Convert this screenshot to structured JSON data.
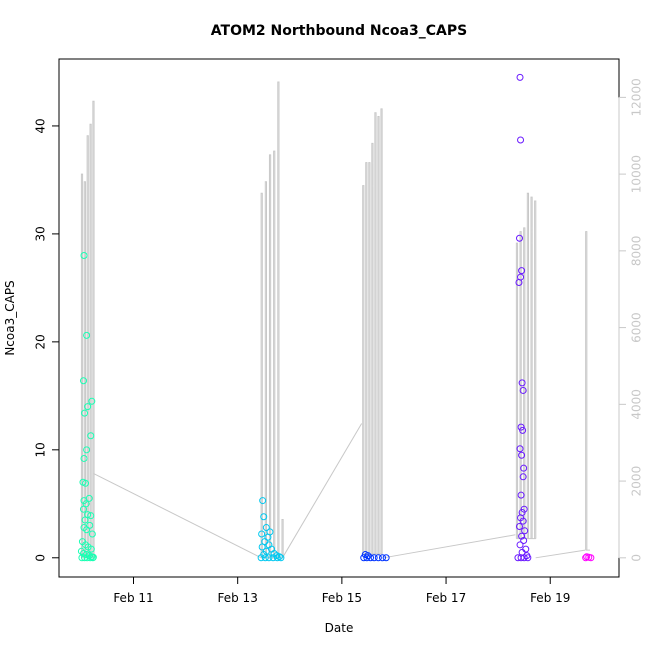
{
  "chart_data": {
    "type": "scatter",
    "title": "ATOM2 Northbound Ncoa3_CAPS",
    "xlabel": "Date",
    "ylabel": "Ncoa3_CAPS",
    "x_ticks": [
      "Feb 11",
      "Feb 13",
      "Feb 15",
      "Feb 17",
      "Feb 19"
    ],
    "x_tick_days": [
      11,
      13,
      15,
      17,
      19
    ],
    "xlim_days": [
      9.57,
      20.32
    ],
    "ylim": [
      -1.78,
      46.2
    ],
    "y_ticks": [
      0,
      10,
      20,
      30,
      40
    ],
    "y2_ticks": [
      0,
      2000,
      4000,
      6000,
      8000,
      10000,
      12000
    ],
    "y2lim": [
      -500,
      13000
    ],
    "grid": false,
    "colors": {
      "series_points": [
        "#1affb3",
        "#00c8f0",
        "#0033ff",
        "#6a1aff",
        "#ff00ff"
      ],
      "secondary_line": "#c8c8c8"
    },
    "series": [
      {
        "color": "#1affb3",
        "points": [
          [
            10.05,
            28.0
          ],
          [
            10.1,
            20.6
          ],
          [
            10.04,
            16.4
          ],
          [
            10.2,
            14.5
          ],
          [
            10.12,
            14.0
          ],
          [
            10.06,
            13.4
          ],
          [
            10.18,
            11.3
          ],
          [
            10.1,
            10.0
          ],
          [
            10.05,
            9.2
          ],
          [
            10.03,
            7.0
          ],
          [
            10.08,
            6.9
          ],
          [
            10.15,
            5.5
          ],
          [
            10.05,
            5.3
          ],
          [
            10.09,
            5.0
          ],
          [
            10.04,
            4.5
          ],
          [
            10.12,
            4.0
          ],
          [
            10.18,
            3.9
          ],
          [
            10.07,
            3.5
          ],
          [
            10.16,
            3.0
          ],
          [
            10.05,
            2.8
          ],
          [
            10.1,
            2.6
          ],
          [
            10.21,
            2.2
          ],
          [
            10.02,
            1.5
          ],
          [
            10.08,
            1.2
          ],
          [
            10.13,
            1.0
          ],
          [
            10.19,
            0.8
          ],
          [
            10.0,
            0.6
          ],
          [
            10.04,
            0.4
          ],
          [
            10.1,
            0.3
          ],
          [
            10.15,
            0.2
          ],
          [
            10.2,
            0.1
          ],
          [
            10.23,
            0.05
          ],
          [
            10.01,
            0.0
          ],
          [
            10.06,
            0.0
          ],
          [
            10.11,
            0.0
          ],
          [
            10.17,
            0.0
          ],
          [
            10.22,
            0.0
          ]
        ]
      },
      {
        "color": "#00c8f0",
        "points": [
          [
            13.48,
            5.3
          ],
          [
            13.5,
            3.8
          ],
          [
            13.55,
            2.8
          ],
          [
            13.62,
            2.4
          ],
          [
            13.46,
            2.2
          ],
          [
            13.58,
            1.9
          ],
          [
            13.52,
            1.5
          ],
          [
            13.6,
            1.2
          ],
          [
            13.47,
            1.0
          ],
          [
            13.65,
            0.8
          ],
          [
            13.55,
            0.6
          ],
          [
            13.7,
            0.4
          ],
          [
            13.5,
            0.3
          ],
          [
            13.75,
            0.2
          ],
          [
            13.8,
            0.1
          ],
          [
            13.45,
            0.0
          ],
          [
            13.53,
            0.0
          ],
          [
            13.6,
            0.0
          ],
          [
            13.68,
            0.0
          ],
          [
            13.76,
            0.0
          ],
          [
            13.83,
            0.0
          ]
        ]
      },
      {
        "color": "#0033ff",
        "points": [
          [
            15.45,
            0.3
          ],
          [
            15.5,
            0.2
          ],
          [
            15.42,
            0.0
          ],
          [
            15.48,
            0.0
          ],
          [
            15.55,
            0.0
          ],
          [
            15.62,
            0.0
          ],
          [
            15.7,
            0.0
          ],
          [
            15.78,
            0.0
          ],
          [
            15.85,
            0.0
          ]
        ]
      },
      {
        "color": "#6a1aff",
        "points": [
          [
            18.42,
            44.5
          ],
          [
            18.43,
            38.7
          ],
          [
            18.41,
            29.6
          ],
          [
            18.45,
            26.6
          ],
          [
            18.43,
            26.0
          ],
          [
            18.4,
            25.5
          ],
          [
            18.46,
            16.2
          ],
          [
            18.48,
            15.5
          ],
          [
            18.44,
            12.1
          ],
          [
            18.47,
            11.8
          ],
          [
            18.42,
            10.1
          ],
          [
            18.45,
            9.5
          ],
          [
            18.49,
            8.3
          ],
          [
            18.48,
            7.5
          ],
          [
            18.44,
            5.8
          ],
          [
            18.5,
            4.5
          ],
          [
            18.46,
            4.2
          ],
          [
            18.43,
            3.7
          ],
          [
            18.48,
            3.4
          ],
          [
            18.41,
            2.9
          ],
          [
            18.51,
            2.5
          ],
          [
            18.45,
            2.0
          ],
          [
            18.49,
            1.6
          ],
          [
            18.42,
            1.2
          ],
          [
            18.53,
            0.8
          ],
          [
            18.46,
            0.5
          ],
          [
            18.55,
            0.2
          ],
          [
            18.38,
            0.0
          ],
          [
            18.44,
            0.0
          ],
          [
            18.5,
            0.0
          ],
          [
            18.57,
            0.0
          ]
        ]
      },
      {
        "color": "#ff00ff",
        "points": [
          [
            19.7,
            0.1
          ],
          [
            19.74,
            0.05
          ],
          [
            19.78,
            0.0
          ],
          [
            19.68,
            0.0
          ]
        ]
      }
    ],
    "secondary_series": {
      "color": "#c8c8c8",
      "axis": "right",
      "spike_groups": [
        {
          "start": 10.0,
          "end": 10.22,
          "baseline": 0,
          "peaks": [
            10000,
            9800,
            11000,
            11300,
            11900
          ]
        },
        {
          "start": 13.45,
          "end": 13.85,
          "baseline": 0,
          "peaks": [
            9500,
            9800,
            10500,
            10600,
            12400,
            1000
          ]
        },
        {
          "start": 15.4,
          "end": 15.75,
          "baseline": 100,
          "peaks": [
            9700,
            10300,
            10300,
            10800,
            11600,
            11500,
            11700
          ]
        },
        {
          "start": 18.35,
          "end": 18.7,
          "baseline": 500,
          "peaks": [
            8200,
            8500,
            8600,
            9500,
            9400,
            9300
          ]
        },
        {
          "start": 19.68,
          "end": 19.74,
          "baseline": 200,
          "peaks": [
            8500
          ]
        }
      ],
      "connectors": [
        [
          [
            10.23,
            2200
          ],
          [
            13.45,
            0
          ]
        ],
        [
          [
            13.86,
            0
          ],
          [
            15.38,
            3500
          ]
        ],
        [
          [
            15.8,
            0
          ],
          [
            18.33,
            600
          ]
        ],
        [
          [
            18.72,
            0
          ],
          [
            19.67,
            200
          ]
        ]
      ]
    }
  }
}
